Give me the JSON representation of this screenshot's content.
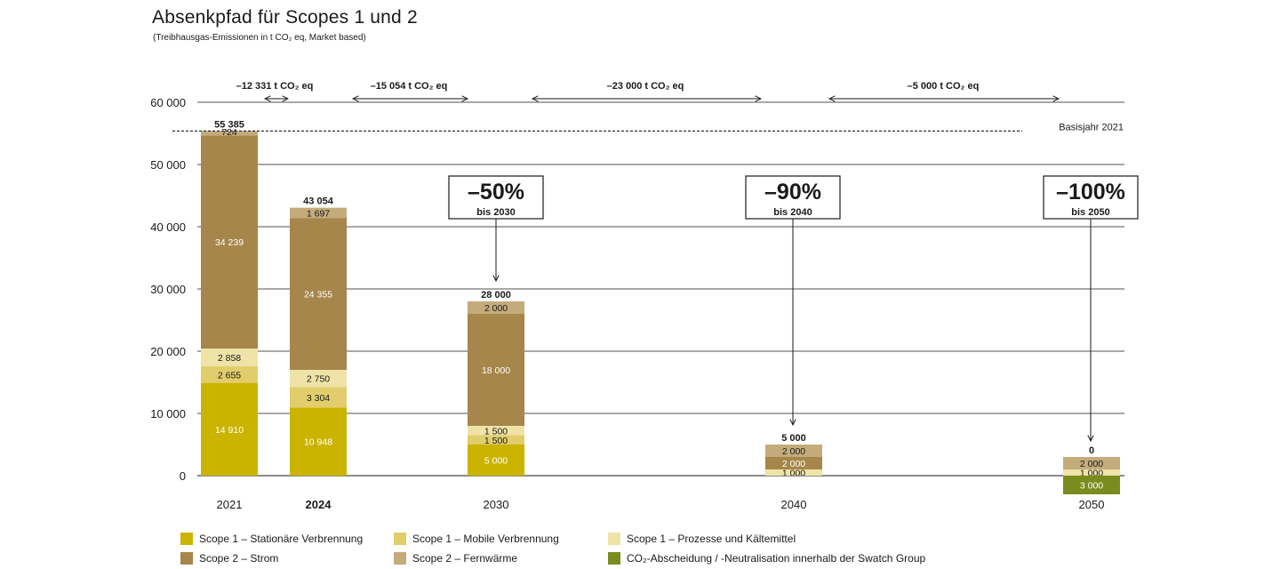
{
  "header": {
    "title": "Absenkpfad für Scopes 1 und 2",
    "subtitle": "(Treibhausgas-Emissionen in t CO₂ eq, Market based)"
  },
  "colors": {
    "scope1_stationaer": "#cbb400",
    "scope1_mobil": "#e1cd6b",
    "scope1_prozesse": "#efe3a7",
    "scope2_strom": "#a6864b",
    "scope2_fernwaerme": "#c4ab7c",
    "co2_abscheidung": "#7a8c1e"
  },
  "chart_data": {
    "type": "bar",
    "stacked": true,
    "categories": [
      "2021",
      "2024",
      "2030",
      "2040",
      "2050"
    ],
    "bold_categories": [
      "2024"
    ],
    "y_ticks": [
      "60 000",
      "50 000",
      "40 000",
      "30 000",
      "20 000",
      "10 000",
      "0"
    ],
    "ylim": [
      0,
      60000
    ],
    "grid": true,
    "totals": [
      "55 385",
      "43 054",
      "28 000",
      "5 000",
      "0"
    ],
    "series": [
      {
        "name": "Scope 1 – Stationäre Verbrennung",
        "color_key": "scope1_stationaer",
        "text_color": "#ffffff",
        "values": [
          14910,
          10948,
          5000,
          0,
          0
        ],
        "labels": [
          "14 910",
          "10 948",
          "5 000",
          "",
          ""
        ]
      },
      {
        "name": "Scope 1 – Mobile Verbrennung",
        "color_key": "scope1_mobil",
        "text_color": "#1a1a1a",
        "values": [
          2655,
          3304,
          1500,
          0,
          0
        ],
        "labels": [
          "2 655",
          "3 304",
          "1 500",
          "",
          ""
        ]
      },
      {
        "name": "Scope 1 – Prozesse und Kältemittel",
        "color_key": "scope1_prozesse",
        "text_color": "#1a1a1a",
        "values": [
          2858,
          2750,
          1500,
          1000,
          1000
        ],
        "labels": [
          "2 858",
          "2 750",
          "1 500",
          "1 000",
          "1 000"
        ]
      },
      {
        "name": "Scope 2 – Strom",
        "color_key": "scope2_strom",
        "text_color": "#ffffff",
        "values": [
          34239,
          24355,
          18000,
          2000,
          0
        ],
        "labels": [
          "34 239",
          "24 355",
          "18 000",
          "2 000",
          ""
        ]
      },
      {
        "name": "Scope 2 – Fernwärme",
        "color_key": "scope2_fernwaerme",
        "text_color": "#1a1a1a",
        "values": [
          724,
          1697,
          2000,
          2000,
          2000
        ],
        "labels": [
          "724",
          "1 697",
          "2 000",
          "2 000",
          "2 000"
        ]
      },
      {
        "name": "CO₂-Abscheidung / -Neutralisation innerhalb der Swatch Group",
        "color_key": "co2_abscheidung",
        "text_color": "#ffffff",
        "values": [
          0,
          0,
          0,
          0,
          -3000
        ],
        "labels": [
          "",
          "",
          "",
          "",
          "3 000"
        ]
      }
    ],
    "baseline": {
      "label": "Basisjahr 2021",
      "value": 55385
    },
    "reductions": [
      {
        "label": "–12 331 t CO₂ eq",
        "from": "2021",
        "to": "2024"
      },
      {
        "label": "–15 054 t CO₂ eq",
        "from": "2024",
        "to": "2030"
      },
      {
        "label": "–23 000 t CO₂ eq",
        "from": "2030",
        "to": "2040"
      },
      {
        "label": "–5 000 t CO₂ eq",
        "from": "2040",
        "to": "2050"
      }
    ],
    "targets": [
      {
        "pct": "–50%",
        "sub": "bis 2030",
        "category": "2030"
      },
      {
        "pct": "–90%",
        "sub": "bis 2040",
        "category": "2040"
      },
      {
        "pct": "–100%",
        "sub": "bis 2050",
        "category": "2050"
      }
    ]
  },
  "legend": [
    {
      "label": "Scope 1 – Stationäre Verbrennung",
      "color_key": "scope1_stationaer"
    },
    {
      "label": "Scope 1 – Mobile Verbrennung",
      "color_key": "scope1_mobil"
    },
    {
      "label": "Scope 1 – Prozesse und Kältemittel",
      "color_key": "scope1_prozesse"
    },
    {
      "label": "Scope 2 – Strom",
      "color_key": "scope2_strom"
    },
    {
      "label": "Scope 2 – Fernwärme",
      "color_key": "scope2_fernwaerme"
    },
    {
      "label": "CO₂-Abscheidung / -Neutralisation innerhalb der Swatch Group",
      "color_key": "co2_abscheidung"
    }
  ]
}
